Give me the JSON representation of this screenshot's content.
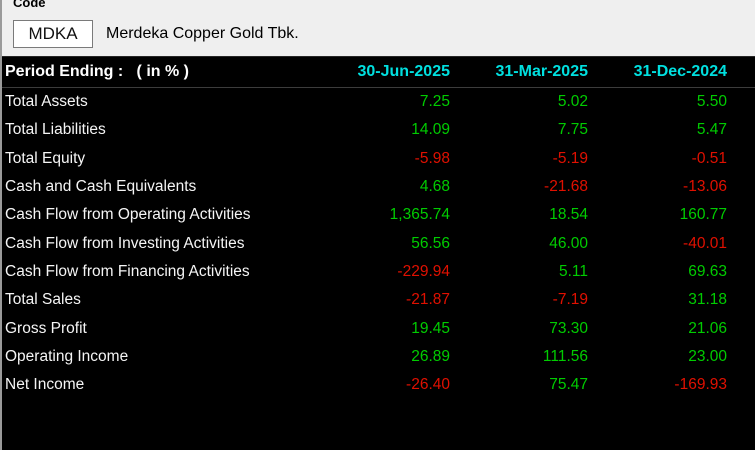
{
  "header": {
    "code_label": "Code",
    "code_value": "MDKA",
    "company_name": "Merdeka Copper Gold Tbk."
  },
  "table": {
    "title": "Period Ending :   ( in % )",
    "columns": [
      "30-Jun-2025",
      "31-Mar-2025",
      "31-Dec-2024"
    ],
    "rows": [
      {
        "label": "Total Assets",
        "values": [
          "7.25",
          "5.02",
          "5.50"
        ]
      },
      {
        "label": "Total Liabilities",
        "values": [
          "14.09",
          "7.75",
          "5.47"
        ]
      },
      {
        "label": "Total Equity",
        "values": [
          "-5.98",
          "-5.19",
          "-0.51"
        ]
      },
      {
        "label": "Cash and Cash Equivalents",
        "values": [
          "4.68",
          "-21.68",
          "-13.06"
        ]
      },
      {
        "label": "Cash Flow from Operating Activities",
        "values": [
          "1,365.74",
          "18.54",
          "160.77"
        ]
      },
      {
        "label": "Cash Flow from Investing Activities",
        "values": [
          "56.56",
          "46.00",
          "-40.01"
        ]
      },
      {
        "label": "Cash Flow from Financing Activities",
        "values": [
          "-229.94",
          "5.11",
          "69.63"
        ]
      },
      {
        "label": "Total Sales",
        "values": [
          "-21.87",
          "-7.19",
          "31.18"
        ]
      },
      {
        "label": "Gross Profit",
        "values": [
          "19.45",
          "73.30",
          "21.06"
        ]
      },
      {
        "label": "Operating Income",
        "values": [
          "26.89",
          "111.56",
          "23.00"
        ]
      },
      {
        "label": "Net Income",
        "values": [
          "-26.40",
          "75.47",
          "-169.93"
        ]
      }
    ]
  },
  "colors": {
    "positive": "#00cc00",
    "negative": "#e01000",
    "column_header": "#00e0e0"
  }
}
